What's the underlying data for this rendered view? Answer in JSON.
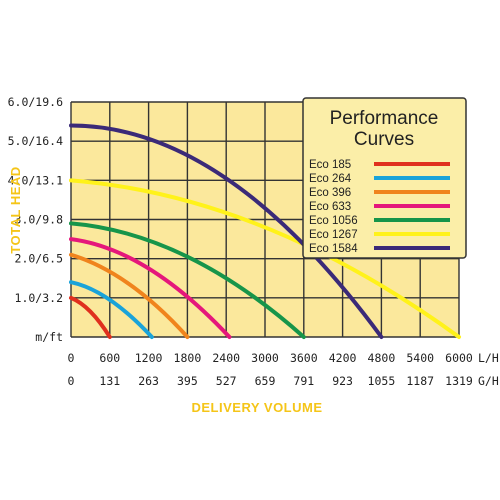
{
  "chart_data": {
    "type": "line",
    "ylabel": "TOTAL HEAD",
    "xlabel": "DELIVERY VOLUME",
    "y_ticks": [
      "m/ft",
      "1.0/3.2",
      "2.0/6.5",
      "3.0/9.8",
      "4.0/13.1",
      "5.0/16.4",
      "6.0/19.6"
    ],
    "x_ticks_lh": [
      "0",
      "600",
      "1200",
      "1800",
      "2400",
      "3000",
      "3600",
      "4200",
      "4800",
      "5400",
      "6000"
    ],
    "x_unit_lh": "L/H",
    "x_ticks_gh": [
      "0",
      "131",
      "263",
      "395",
      "527",
      "659",
      "791",
      "923",
      "1055",
      "1187",
      "1319"
    ],
    "x_unit_gh": "G/H",
    "xlim": [
      0,
      6000
    ],
    "ylim": [
      0,
      6
    ],
    "grid": true,
    "legend": {
      "title_line1": "Performance",
      "title_line2": "Curves",
      "placement": "top-right"
    },
    "series": [
      {
        "name": "Eco 185",
        "color": "#e0301e",
        "x": [
          0,
          300,
          600
        ],
        "y": [
          1.0,
          0.65,
          0.0
        ]
      },
      {
        "name": "Eco 264",
        "color": "#1aa3d9",
        "x": [
          0,
          600,
          1250
        ],
        "y": [
          1.4,
          0.95,
          0.0
        ]
      },
      {
        "name": "Eco 396",
        "color": "#f0841d",
        "x": [
          0,
          900,
          1800
        ],
        "y": [
          2.1,
          1.35,
          0.0
        ]
      },
      {
        "name": "Eco 633",
        "color": "#e5177b",
        "x": [
          0,
          1200,
          2450
        ],
        "y": [
          2.5,
          1.75,
          0.0
        ]
      },
      {
        "name": "Eco 1056",
        "color": "#17954a",
        "x": [
          0,
          1800,
          3600
        ],
        "y": [
          2.9,
          2.05,
          0.0
        ]
      },
      {
        "name": "Eco 1267",
        "color": "#fff21a",
        "x": [
          0,
          3000,
          6000
        ],
        "y": [
          4.0,
          2.8,
          0.0
        ]
      },
      {
        "name": "Eco 1584",
        "color": "#3b2a78",
        "x": [
          0,
          2400,
          4800
        ],
        "y": [
          5.4,
          4.05,
          0.0
        ]
      }
    ]
  }
}
